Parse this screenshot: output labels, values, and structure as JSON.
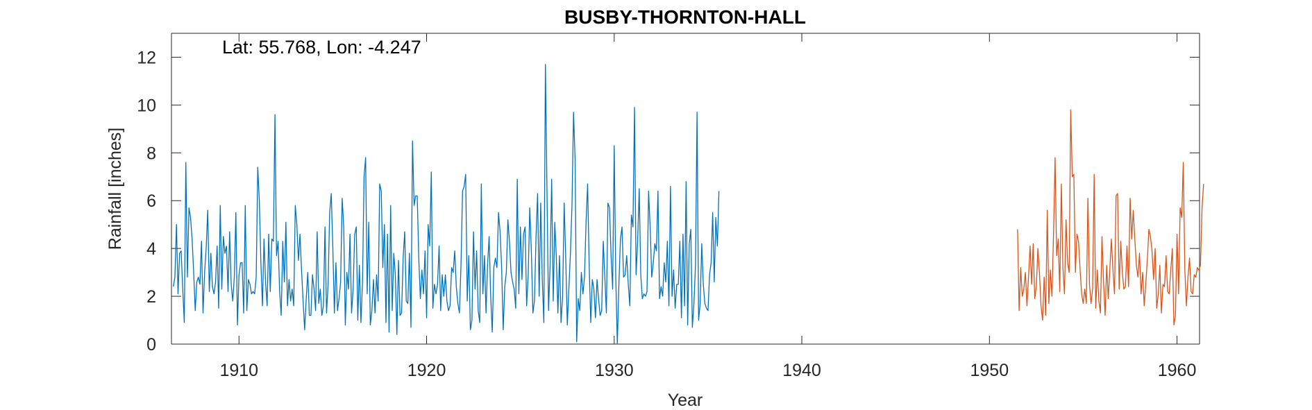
{
  "chart_data": {
    "type": "line",
    "title": "BUSBY-THORNTON-HALL",
    "annotation": "Lat: 55.768, Lon: -4.247",
    "xlabel": "Year",
    "ylabel": "Rainfall [inches]",
    "xlim": [
      1906.4,
      1961.2
    ],
    "ylim": [
      0,
      13
    ],
    "xticks": [
      1910,
      1920,
      1930,
      1940,
      1950,
      1960
    ],
    "yticks": [
      0,
      2,
      4,
      6,
      8,
      10,
      12
    ],
    "grid": false,
    "series": [
      {
        "color": "#0072BD",
        "x_start": 1906.5,
        "x_step": 0.08333,
        "values": [
          2.4,
          2.8,
          5.0,
          2.1,
          3.8,
          3.9,
          2.3,
          0.9,
          7.6,
          2.8,
          5.7,
          5.3,
          4.4,
          3.0,
          1.4,
          2.6,
          2.8,
          2.5,
          4.3,
          1.3,
          3.0,
          4.0,
          5.6,
          2.2,
          3.8,
          2.4,
          2.1,
          2.6,
          4.1,
          1.5,
          5.8,
          2.3,
          4.5,
          3.8,
          4.1,
          2.2,
          4.7,
          2.5,
          1.8,
          2.8,
          5.5,
          0.8,
          2.9,
          3.4,
          3.4,
          1.3,
          5.8,
          1.4,
          2.7,
          2.5,
          2.1,
          2.2,
          2.1,
          2.8,
          7.4,
          6.0,
          3.4,
          1.6,
          4.4,
          2.6,
          1.6,
          4.6,
          2.2,
          4.4,
          4.3,
          9.6,
          3.7,
          4.3,
          2.2,
          1.2,
          4.3,
          2.6,
          5.1,
          1.6,
          2.7,
          1.8,
          2.3,
          1.6,
          5.8,
          5.0,
          3.5,
          4.6,
          3.1,
          1.8,
          0.6,
          1.9,
          3.0,
          1.2,
          1.2,
          2.9,
          2.3,
          1.4,
          4.7,
          1.7,
          2.3,
          1.2,
          1.6,
          4.9,
          1.3,
          2.5,
          5.5,
          6.3,
          4.1,
          1.3,
          3.4,
          1.4,
          1.9,
          2.6,
          6.1,
          4.9,
          0.8,
          3.0,
          2.3,
          4.6,
          1.3,
          2.3,
          4.6,
          4.9,
          1.0,
          3.3,
          0.9,
          2.6,
          7.0,
          7.8,
          2.1,
          5.1,
          0.8,
          1.4,
          2.7,
          1.3,
          2.9,
          1.8,
          6.7,
          6.4,
          3.2,
          5.0,
          0.9,
          4.6,
          0.5,
          5.8,
          1.4,
          3.8,
          2.9,
          0.4,
          3.5,
          1.2,
          1.3,
          3.6,
          4.7,
          1.8,
          1.7,
          3.8,
          0.7,
          8.5,
          5.8,
          6.2,
          6.2,
          3.6,
          1.9,
          3.1,
          2.1,
          3.9,
          1.1,
          5.0,
          4.1,
          7.2,
          1.5,
          2.5,
          2.1,
          2.5,
          4.1,
          1.4,
          2.9,
          2.0,
          2.9,
          1.8,
          1.4,
          1.6,
          3.2,
          3.0,
          3.9,
          2.4,
          1.7,
          1.3,
          3.3,
          6.4,
          6.6,
          7.1,
          1.8,
          3.7,
          0.6,
          1.0,
          4.7,
          2.3,
          3.9,
          1.4,
          0.9,
          6.7,
          2.1,
          3.7,
          1.3,
          3.3,
          4.5,
          2.0,
          0.5,
          3.2,
          3.6,
          3.2,
          5.5,
          4.7,
          3.2,
          0.6,
          2.4,
          3.0,
          5.2,
          4.3,
          3.0,
          2.6,
          2.3,
          1.5,
          6.9,
          2.1,
          4.9,
          2.7,
          4.6,
          4.9,
          1.6,
          2.9,
          5.7,
          3.9,
          1.3,
          1.8,
          4.5,
          6.3,
          2.0,
          5.9,
          2.7,
          0.9,
          11.7,
          6.4,
          1.4,
          3.3,
          6.9,
          1.8,
          5.1,
          3.6,
          1.3,
          3.7,
          0.9,
          2.0,
          5.9,
          3.6,
          0.8,
          2.3,
          3.8,
          5.8,
          9.7,
          7.7,
          0.1,
          1.9,
          1.4,
          3.0,
          2.1,
          2.8,
          5.1,
          6.7,
          3.3,
          0.9,
          2.7,
          2.3,
          1.1,
          2.7,
          1.9,
          1.2,
          1.4,
          4.3,
          2.8,
          1.3,
          5.9,
          5.7,
          3.7,
          2.3,
          8.3,
          2.8,
          0.0,
          2.5,
          4.4,
          4.9,
          2.8,
          2.9,
          3.7,
          2.5,
          1.6,
          5.4,
          4.9,
          9.9,
          2.9,
          4.3,
          6.5,
          2.9,
          1.9,
          2.1,
          2.0,
          2.2,
          6.4,
          4.9,
          2.8,
          3.4,
          4.2,
          3.9,
          6.4,
          1.9,
          2.4,
          2.0,
          3.4,
          2.6,
          4.3,
          1.6,
          6.6,
          2.0,
          3.1,
          1.5,
          2.5,
          2.5,
          4.3,
          1.1,
          4.6,
          1.6,
          6.8,
          0.8,
          4.2,
          4.8,
          0.7,
          1.7,
          3.3,
          9.7,
          1.0,
          1.7,
          4.2,
          2.5,
          1.7,
          1.5,
          1.4,
          2.9,
          3.4,
          5.5,
          2.6,
          5.3,
          4.1,
          6.4
        ]
      },
      {
        "color": "#D95319",
        "x_start": 1951.5,
        "x_step": 0.08333,
        "values": [
          4.8,
          1.4,
          3.2,
          2.0,
          2.3,
          3.0,
          1.6,
          2.8,
          4.1,
          2.5,
          4.2,
          1.9,
          2.4,
          4.0,
          3.0,
          1.6,
          1.0,
          2.8,
          1.2,
          5.6,
          1.7,
          3.1,
          2.0,
          4.6,
          7.8,
          3.7,
          4.4,
          2.2,
          6.7,
          3.2,
          2.1,
          5.2,
          3.4,
          3.0,
          9.8,
          7.0,
          7.1,
          3.0,
          4.6,
          4.3,
          3.1,
          2.1,
          1.7,
          2.3,
          1.7,
          6.1,
          2.5,
          1.7,
          2.3,
          7.1,
          1.5,
          3.1,
          1.8,
          1.3,
          4.5,
          2.6,
          1.2,
          3.3,
          1.9,
          3.1,
          4.4,
          3.1,
          2.1,
          6.2,
          6.3,
          2.3,
          4.3,
          3.0,
          2.3,
          2.4,
          4.1,
          2.4,
          6.1,
          4.4,
          5.6,
          4.4,
          3.3,
          2.8,
          3.8,
          2.1,
          3.0,
          1.6,
          2.5,
          3.5,
          4.8,
          4.5,
          3.9,
          2.7,
          4.0,
          1.5,
          2.1,
          3.3,
          1.3,
          2.5,
          2.4,
          3.7,
          2.2,
          2.1,
          3.1,
          4.0,
          0.8,
          1.2,
          4.6,
          2.1,
          5.7,
          5.3,
          7.6,
          3.1,
          1.6,
          2.8,
          3.6,
          2.2,
          2.1,
          2.9,
          2.8,
          3.2,
          3.1,
          3.3,
          5.7,
          6.7
        ]
      }
    ]
  }
}
